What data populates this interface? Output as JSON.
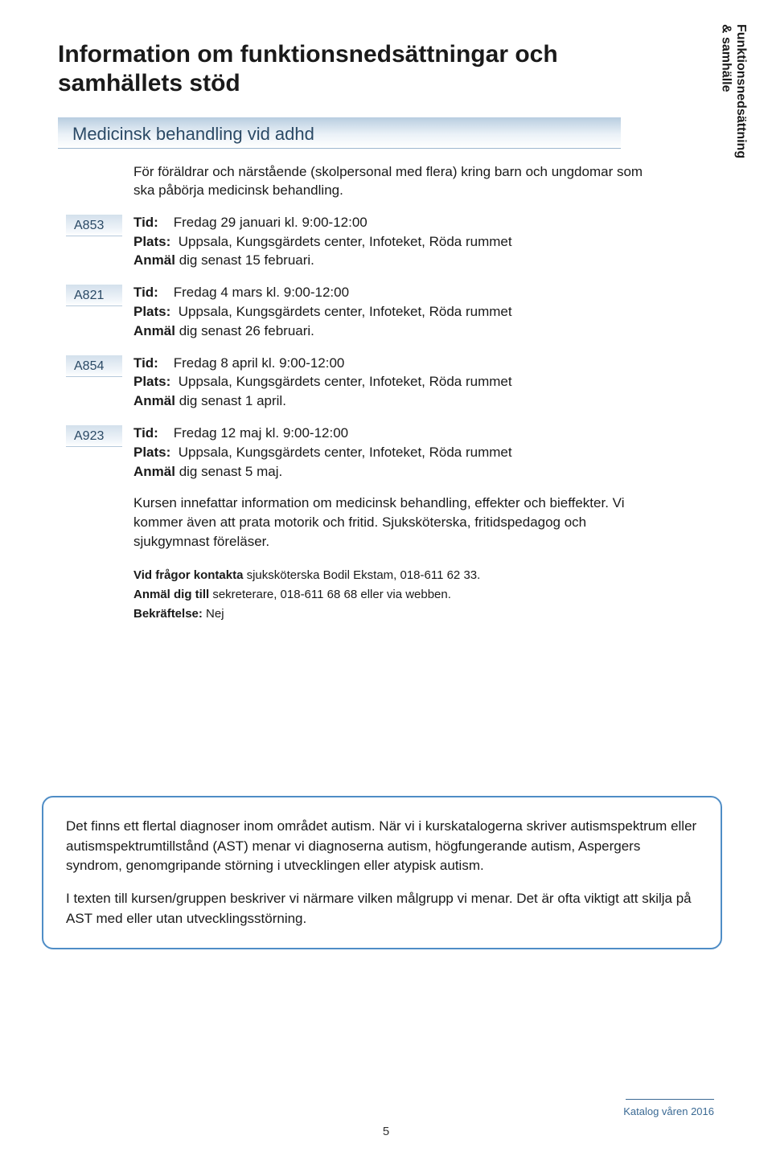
{
  "sidebar_tab": "Funktionsnedsättning\n& samhälle",
  "heading": "Information om funktionsnedsättningar och samhällets stöd",
  "section_title": "Medicinsk behandling vid adhd",
  "intro": "För föräldrar och närstående (skolpersonal med flera) kring barn och ungdomar som ska påbörja medicinsk behandling.",
  "label_tid": "Tid:",
  "label_plats": "Plats:",
  "label_anmal": "Anmäl",
  "sessions": [
    {
      "code": "A853",
      "tid": "Fredag 29 januari kl. 9:00-12:00",
      "plats": "Uppsala, Kungsgärdets center, Infoteket, Röda rummet",
      "anmal": " dig senast 15 februari."
    },
    {
      "code": "A821",
      "tid": "Fredag 4 mars kl. 9:00-12:00",
      "plats": "Uppsala, Kungsgärdets center, Infoteket, Röda rummet",
      "anmal": " dig senast 26 februari."
    },
    {
      "code": "A854",
      "tid": "Fredag 8 april kl. 9:00-12:00",
      "plats": "Uppsala, Kungsgärdets center, Infoteket, Röda rummet",
      "anmal": " dig senast 1 april."
    },
    {
      "code": "A923",
      "tid": "Fredag 12 maj kl. 9:00-12:00",
      "plats": "Uppsala, Kungsgärdets center, Infoteket, Röda rummet",
      "anmal": " dig senast 5 maj."
    }
  ],
  "description": "Kursen innefattar information om medicinsk behandling, effekter och bieffekter. Vi kommer även att prata motorik och fritid. Sjuksköterska, fritidspedagog och sjukgymnast föreläser.",
  "contact_label": "Vid frågor kontakta",
  "contact_text": " sjuksköterska  Bodil Ekstam, 018-611 62 33.",
  "register_label": "Anmäl dig till",
  "register_text": " sekreterare, 018-611 68 68 eller via webben.",
  "confirm_label": "Bekräftelse:",
  "confirm_text": " Nej",
  "info_p1": "Det finns ett flertal diagnoser inom området autism. När vi i kurskatalogerna skriver autismspektrum eller autismspektrumtillstånd (AST) menar vi diagnoserna autism, högfungerande autism, Aspergers syndrom, genomgripande störning i utvecklingen eller atypisk autism.",
  "info_p2": "I texten till kursen/gruppen beskriver vi närmare vilken målgrupp vi menar. Det är ofta viktigt att skilja på AST med eller utan utvecklingsstörning.",
  "footer_text": "Katalog våren 2016",
  "page_number": "5",
  "colors": {
    "tab_text": "#2b4a66",
    "border_blue": "#4f8dc6",
    "footer_blue": "#3b6a94"
  }
}
